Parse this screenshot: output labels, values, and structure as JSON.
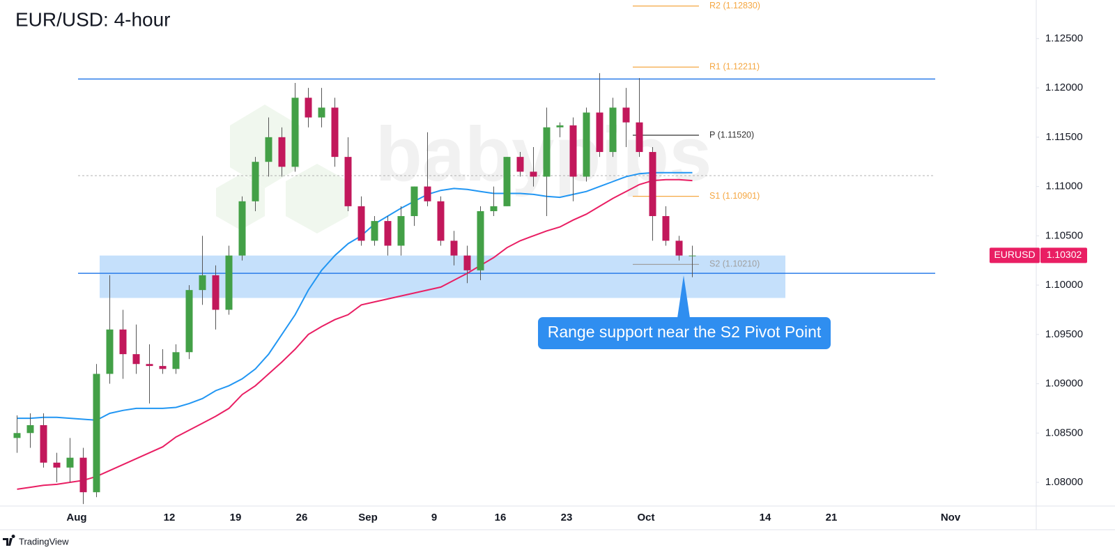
{
  "chart_data": {
    "type": "candlestick",
    "title": "EUR/USD: 4-hour",
    "watermark": "babypips",
    "brand": "TradingView",
    "categories": [
      null,
      null,
      null,
      null,
      null,
      "Aug",
      null,
      null,
      null,
      null,
      null,
      null,
      "12",
      null,
      null,
      null,
      null,
      "19",
      null,
      null,
      null,
      null,
      "26",
      null,
      null,
      null,
      null,
      "Sep",
      null,
      null,
      null,
      null,
      "9",
      null,
      null,
      null,
      null,
      "16",
      null,
      null,
      null,
      null,
      "23",
      null,
      null,
      null,
      null,
      null,
      "Oct",
      null,
      null,
      null,
      null,
      null,
      null,
      null,
      null,
      "14",
      null,
      null,
      null,
      null,
      "21",
      null,
      null,
      null,
      null,
      null,
      null,
      null,
      null,
      "Nov",
      null,
      null,
      null,
      null,
      null
    ],
    "candles": {
      "up_color": "#43a047",
      "down_color": "#c2185b",
      "wick_color": "#555555",
      "open": [
        1.0845,
        1.085,
        1.0858,
        1.082,
        1.0815,
        1.0825,
        1.079,
        1.091,
        1.0955,
        1.093,
        1.092,
        1.0918,
        1.0915,
        1.0932,
        1.0995,
        1.101,
        1.0975,
        1.103,
        1.1085,
        1.1125,
        1.115,
        1.112,
        1.119,
        1.117,
        1.118,
        1.113,
        1.108,
        1.1045,
        1.1065,
        1.104,
        1.107,
        1.11,
        1.1085,
        1.1045,
        1.103,
        1.1015,
        1.1075,
        1.108,
        1.113,
        1.1115,
        1.111,
        1.116,
        1.1162,
        1.111,
        1.1175,
        1.1135,
        1.118,
        1.1165,
        1.1135,
        1.107,
        1.1045,
        1.103,
        null,
        null,
        null,
        null,
        null,
        null,
        null,
        null,
        null,
        null,
        null,
        null,
        null,
        null,
        null,
        null,
        null,
        null,
        null,
        null,
        null,
        null,
        null,
        null,
        null
      ],
      "high": [
        1.0868,
        1.087,
        1.087,
        1.083,
        1.0845,
        1.0835,
        1.092,
        1.101,
        1.0975,
        1.096,
        1.094,
        1.0935,
        1.094,
        1.1,
        1.105,
        1.102,
        1.104,
        1.109,
        1.113,
        1.117,
        1.116,
        1.1205,
        1.12,
        1.12,
        1.119,
        1.115,
        1.109,
        1.107,
        1.107,
        1.108,
        1.11,
        1.1155,
        1.109,
        1.1055,
        1.104,
        1.108,
        1.11,
        1.113,
        1.1135,
        1.114,
        1.118,
        1.1165,
        1.117,
        1.118,
        1.1215,
        1.119,
        1.12,
        1.121,
        1.114,
        1.108,
        1.105,
        1.104,
        null,
        null,
        null,
        null,
        null,
        null,
        null,
        null,
        null,
        null,
        null,
        null,
        null,
        null,
        null,
        null,
        null,
        null,
        null,
        null,
        null,
        null,
        null,
        null,
        null
      ],
      "low": [
        1.083,
        1.0835,
        1.0815,
        1.08,
        1.08,
        1.0778,
        1.0785,
        1.09,
        1.0905,
        1.091,
        1.088,
        1.091,
        1.091,
        1.0925,
        1.098,
        1.0955,
        1.097,
        1.1025,
        1.1075,
        1.111,
        1.111,
        1.1115,
        1.116,
        1.116,
        1.112,
        1.1075,
        1.104,
        1.104,
        1.103,
        1.103,
        1.106,
        1.108,
        1.104,
        1.102,
        1.1002,
        1.1005,
        1.107,
        1.108,
        1.111,
        1.11,
        1.107,
        1.115,
        1.1085,
        1.1105,
        1.113,
        1.113,
        1.114,
        1.113,
        1.1045,
        1.104,
        1.1025,
        1.1008,
        null,
        null,
        null,
        null,
        null,
        null,
        null,
        null,
        null,
        null,
        null,
        null,
        null,
        null,
        null,
        null,
        null,
        null,
        null,
        null,
        null,
        null,
        null,
        null,
        null
      ],
      "close": [
        1.085,
        1.0858,
        1.082,
        1.0815,
        1.0825,
        1.079,
        1.091,
        1.0955,
        1.093,
        1.092,
        1.0918,
        1.0915,
        1.0932,
        1.0995,
        1.101,
        1.0975,
        1.103,
        1.1085,
        1.1125,
        1.115,
        1.112,
        1.119,
        1.117,
        1.118,
        1.113,
        1.108,
        1.1045,
        1.1065,
        1.104,
        1.107,
        1.11,
        1.1085,
        1.1045,
        1.103,
        1.1015,
        1.1075,
        1.108,
        1.113,
        1.1115,
        1.111,
        1.116,
        1.1162,
        1.111,
        1.1175,
        1.1135,
        1.118,
        1.1165,
        1.1135,
        1.107,
        1.1045,
        1.103,
        1.103,
        null,
        null,
        null,
        null,
        null,
        null,
        null,
        null,
        null,
        null,
        null,
        null,
        null,
        null,
        null,
        null,
        null,
        null,
        null,
        null,
        null,
        null,
        null,
        null,
        null
      ]
    },
    "lines": [
      {
        "color": "#2196f3",
        "values": [
          1.0865,
          1.0865,
          1.0866,
          1.0866,
          1.0865,
          1.0864,
          1.0863,
          1.087,
          1.0873,
          1.0875,
          1.0875,
          1.0875,
          1.0876,
          1.088,
          1.0885,
          1.0893,
          1.0898,
          1.0905,
          1.0915,
          1.093,
          1.095,
          1.097,
          1.0995,
          1.1015,
          1.103,
          1.1042,
          1.105,
          1.1062,
          1.107,
          1.1078,
          1.1085,
          1.1092,
          1.1096,
          1.1098,
          1.1097,
          1.1095,
          1.1093,
          1.1093,
          1.1093,
          1.1092,
          1.109,
          1.1089,
          1.1092,
          1.1095,
          1.11,
          1.1105,
          1.111,
          1.1113,
          1.1114,
          1.1114,
          1.1114,
          1.1114,
          null,
          null,
          null,
          null,
          null,
          null,
          null,
          null,
          null,
          null,
          null,
          null,
          null,
          null,
          null,
          null,
          null,
          null,
          null,
          null,
          null,
          null,
          null,
          null,
          null
        ]
      },
      {
        "color": "#e91e63",
        "values": [
          1.0793,
          1.0795,
          1.0797,
          1.0798,
          1.08,
          1.0802,
          1.0806,
          1.0812,
          1.0818,
          1.0824,
          1.083,
          1.0836,
          1.0846,
          1.0853,
          1.086,
          1.0867,
          1.0875,
          1.0889,
          1.0898,
          1.091,
          1.0922,
          1.0935,
          1.095,
          1.0958,
          1.0965,
          1.097,
          1.098,
          1.0983,
          1.0986,
          1.0989,
          1.0992,
          1.0995,
          1.0998,
          1.1005,
          1.1012,
          1.102,
          1.1028,
          1.1038,
          1.1045,
          1.105,
          1.1055,
          1.1059,
          1.1066,
          1.1072,
          1.108,
          1.1088,
          1.1095,
          1.1102,
          1.1106,
          1.1107,
          1.1107,
          1.1106,
          null,
          null,
          null,
          null,
          null,
          null,
          null,
          null,
          null,
          null,
          null,
          null,
          null,
          null,
          null,
          null,
          null,
          null,
          null,
          null,
          null,
          null,
          null,
          null,
          null
        ]
      }
    ],
    "levels": [
      {
        "value": 1.1209,
        "color": "#2b7de9"
      },
      {
        "value": 1.1012,
        "color": "#2b7de9"
      }
    ],
    "dashed_level": {
      "value": 1.1111,
      "color": "#b0b0b0"
    },
    "zone": {
      "ymin": 1.0987,
      "ymax": 1.103,
      "color": "#bbdafa"
    },
    "pivots": [
      {
        "value": 1.1283,
        "label": "R2 (1.12830)",
        "color": "#f5a742"
      },
      {
        "value": 1.12211,
        "label": "R1 (1.12211)",
        "color": "#f5a742"
      },
      {
        "value": 1.1152,
        "label": "P (1.11520)",
        "color": "#333333"
      },
      {
        "value": 1.10901,
        "label": "S1 (1.10901)",
        "color": "#f5a742"
      },
      {
        "value": 1.1021,
        "label": "S2 (1.10210)",
        "color": "#a0a0a0"
      }
    ],
    "annotation": "Range support near the S2 Pivot Point",
    "last_price": {
      "symbol": "EURUSD",
      "value": 1.10302,
      "color": "#e91e63"
    },
    "ylim": [
      1.0776,
      1.1287
    ],
    "yticks": [
      {
        "value": 1.125,
        "label": "1.12500"
      },
      {
        "value": 1.12,
        "label": "1.12000"
      },
      {
        "value": 1.115,
        "label": "1.11500"
      },
      {
        "value": 1.11,
        "label": "1.11000"
      },
      {
        "value": 1.105,
        "label": "1.10500"
      },
      {
        "value": 1.1,
        "label": "1.10000"
      },
      {
        "value": 1.095,
        "label": "1.09500"
      },
      {
        "value": 1.09,
        "label": "1.09000"
      },
      {
        "value": 1.085,
        "label": "1.08500"
      },
      {
        "value": 1.08,
        "label": "1.08000"
      }
    ],
    "grid": false
  }
}
